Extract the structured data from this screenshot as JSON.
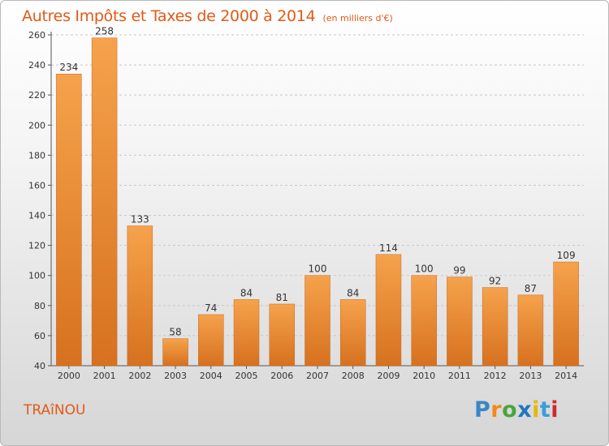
{
  "title": "Autres Impôts et Taxes de 2000 à 2014",
  "unit_note": "(en milliers d'€)",
  "commune": "TRAîNOU",
  "logo": {
    "letters": [
      "P",
      "r",
      "o",
      "x",
      "i",
      "t",
      "i"
    ],
    "colors": [
      "#3a86c8",
      "#f08a1a",
      "#4aa53c",
      "#1f77c0",
      "#e6b800",
      "#3aa0d8",
      "#d12a2a"
    ]
  },
  "colors": {
    "bar": "#f1943f",
    "bar_dark": "#d97427",
    "text_accent": "#e05a17"
  },
  "chart_data": {
    "type": "bar",
    "title": "Autres Impôts et Taxes de 2000 à 2014",
    "categories": [
      "2000",
      "2001",
      "2002",
      "2003",
      "2004",
      "2005",
      "2006",
      "2007",
      "2008",
      "2009",
      "2010",
      "2011",
      "2012",
      "2013",
      "2014"
    ],
    "values": [
      234,
      258,
      133,
      58,
      74,
      84,
      81,
      100,
      84,
      114,
      100,
      99,
      92,
      87,
      109
    ],
    "ylim": [
      40,
      260
    ],
    "yticks": [
      40,
      60,
      80,
      100,
      120,
      140,
      160,
      180,
      200,
      220,
      240,
      260
    ],
    "grid": "horizontal-dashed"
  }
}
